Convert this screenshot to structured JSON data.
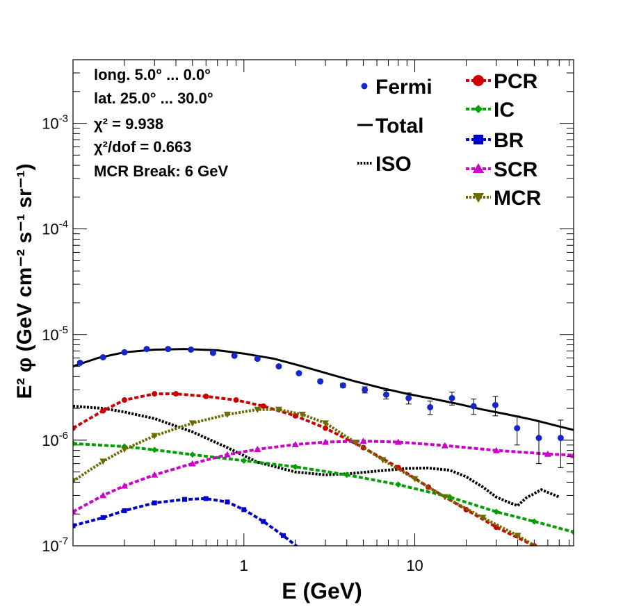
{
  "chart_data": {
    "type": "scatter",
    "x_scale": "log",
    "y_scale": "log",
    "xlabel": "E (GeV)",
    "ylabel": "E² φ (GeV cm⁻² s⁻¹ sr⁻¹)",
    "xlim": [
      0.1,
      85
    ],
    "ylim": [
      1e-07,
      0.004
    ],
    "x_tick_labels": [
      "1",
      "10"
    ],
    "y_tick_labels": [
      "10-7",
      "10-6",
      "10-5",
      "10-4",
      "10-3"
    ],
    "info_text": {
      "longitude": "long. 5.0° ... 0.0°",
      "latitude": "lat. 25.0° ... 30.0°",
      "chi2": "χ² = 9.938",
      "chi2_dof": "χ²/dof = 0.663",
      "mcr_break": "MCR Break:  6 GeV"
    },
    "legend": {
      "left": [
        "Fermi",
        "Total",
        "ISO"
      ],
      "right": [
        "PCR",
        "IC",
        "BR",
        "SCR",
        "MCR"
      ]
    },
    "colors": {
      "Fermi": "#1428c8",
      "Total": "#000000",
      "ISO": "#000000",
      "PCR": "#cc0000",
      "IC": "#00a000",
      "BR": "#0000cc",
      "SCR": "#cc00cc",
      "MCR": "#6b6b00"
    },
    "fermi": {
      "name": "Fermi",
      "x": [
        0.11,
        0.15,
        0.2,
        0.27,
        0.36,
        0.49,
        0.66,
        0.88,
        1.2,
        1.6,
        2.1,
        2.8,
        3.8,
        5.1,
        6.8,
        9.2,
        12.3,
        16.5,
        22.1,
        29.6,
        39.7,
        53.2,
        71.4
      ],
      "y": [
        5.4e-06,
        6.1e-06,
        6.8e-06,
        7.3e-06,
        7.3e-06,
        7.2e-06,
        6.7e-06,
        6.3e-06,
        5.9e-06,
        5e-06,
        4.3e-06,
        3.6e-06,
        3.3e-06,
        3e-06,
        2.7e-06,
        2.5e-06,
        2.05e-06,
        2.5e-06,
        2.1e-06,
        2.15e-06,
        1.3e-06,
        1.05e-06,
        1.05e-06
      ],
      "yerr": [
        1.5e-07,
        1.5e-07,
        1.5e-07,
        1.5e-07,
        1.5e-07,
        1.5e-07,
        1.5e-07,
        1.5e-07,
        1.5e-07,
        1.5e-07,
        1.2e-07,
        1.2e-07,
        1.5e-07,
        2e-07,
        2.5e-07,
        3e-07,
        3e-07,
        3.5e-07,
        3.5e-07,
        4.5e-07,
        4e-07,
        4.5e-07,
        5e-07
      ]
    },
    "series": [
      {
        "name": "Total",
        "style": "solid",
        "marker": "none",
        "x": [
          0.1,
          0.14,
          0.2,
          0.3,
          0.45,
          0.7,
          1.0,
          1.5,
          2.2,
          3.2,
          4.5,
          6.5,
          9.0,
          13,
          18,
          25,
          35,
          50,
          70,
          85
        ],
        "y": [
          5e-06,
          6e-06,
          6.8e-06,
          7.2e-06,
          7.3e-06,
          7.1e-06,
          6.6e-06,
          5.9e-06,
          5e-06,
          4.2e-06,
          3.6e-06,
          3.1e-06,
          2.75e-06,
          2.45e-06,
          2.2e-06,
          1.95e-06,
          1.75e-06,
          1.55e-06,
          1.35e-06,
          1.25e-06
        ]
      },
      {
        "name": "ISO",
        "style": "dotted",
        "marker": "none",
        "x": [
          0.1,
          0.15,
          0.2,
          0.3,
          0.5,
          0.8,
          1.2,
          2.0,
          3.0,
          4.0,
          6.0,
          9.0,
          12.0,
          16.0,
          20.0,
          25.0,
          30.0,
          35.0,
          40.0,
          45.0,
          55.0,
          70.0
        ],
        "y": [
          2.1e-06,
          2e-06,
          1.85e-06,
          1.6e-06,
          1.2e-06,
          8.5e-07,
          6.2e-07,
          5e-07,
          4.7e-07,
          4.8e-07,
          5.1e-07,
          5.4e-07,
          5.45e-07,
          5.2e-07,
          4.5e-07,
          3.6e-07,
          2.9e-07,
          2.6e-07,
          2.4e-07,
          2.85e-07,
          3.4e-07,
          2.9e-07
        ]
      },
      {
        "name": "PCR",
        "style": "dashed",
        "marker": "circle",
        "x": [
          0.1,
          0.15,
          0.2,
          0.3,
          0.4,
          0.6,
          0.9,
          1.3,
          2.0,
          3.0,
          5.0,
          8.0,
          12.0,
          20.0,
          30.0,
          50.0,
          85.0
        ],
        "y": [
          1.3e-06,
          1.9e-06,
          2.4e-06,
          2.75e-06,
          2.75e-06,
          2.6e-06,
          2.4e-06,
          2.1e-06,
          1.7e-06,
          1.3e-06,
          8.5e-07,
          5.5e-07,
          3.6e-07,
          2.2e-07,
          1.5e-07,
          1e-07,
          6.5e-08
        ]
      },
      {
        "name": "IC",
        "style": "dashed",
        "marker": "diamond",
        "x": [
          0.1,
          0.2,
          0.3,
          0.5,
          1.0,
          2.0,
          4.0,
          8.0,
          16.0,
          30.0,
          50.0,
          85.0
        ],
        "y": [
          9.3e-07,
          8.7e-07,
          8.1e-07,
          7.3e-07,
          6.4e-07,
          5.6e-07,
          4.7e-07,
          3.8e-07,
          2.9e-07,
          2.1e-07,
          1.7e-07,
          1.35e-07
        ]
      },
      {
        "name": "BR",
        "style": "dashed",
        "marker": "square",
        "x": [
          0.1,
          0.15,
          0.2,
          0.3,
          0.45,
          0.6,
          0.8,
          1.0,
          1.3,
          1.7,
          2.2,
          3.0
        ],
        "y": [
          1.55e-07,
          1.85e-07,
          2.15e-07,
          2.55e-07,
          2.75e-07,
          2.8e-07,
          2.6e-07,
          2.2e-07,
          1.7e-07,
          1.25e-07,
          9e-08,
          6e-08
        ]
      },
      {
        "name": "SCR",
        "style": "dashed",
        "marker": "triangle-up",
        "x": [
          0.1,
          0.15,
          0.2,
          0.3,
          0.5,
          0.8,
          1.2,
          2.0,
          3.0,
          5.0,
          8.0,
          15.0,
          30.0,
          60.0,
          85.0
        ],
        "y": [
          2.1e-07,
          3e-07,
          3.7e-07,
          4.7e-07,
          6e-07,
          7.3e-07,
          8.2e-07,
          9.1e-07,
          9.6e-07,
          9.8e-07,
          9.6e-07,
          8.9e-07,
          8e-07,
          7.4e-07,
          7.2e-07
        ]
      },
      {
        "name": "MCR",
        "style": "dotted",
        "marker": "triangle-down",
        "x": [
          0.1,
          0.15,
          0.2,
          0.3,
          0.5,
          0.8,
          1.2,
          1.6,
          2.2,
          3.0,
          4.5,
          6.5,
          10.0,
          15.0,
          25.0,
          40.0,
          60.0,
          85.0
        ],
        "y": [
          4.1e-07,
          6.3e-07,
          8.2e-07,
          1.1e-06,
          1.45e-06,
          1.75e-06,
          1.95e-06,
          1.95e-06,
          1.75e-06,
          1.45e-06,
          9.5e-07,
          6.5e-07,
          4.3e-07,
          2.9e-07,
          1.85e-07,
          1.25e-07,
          8.5e-08,
          6e-08
        ]
      }
    ]
  }
}
